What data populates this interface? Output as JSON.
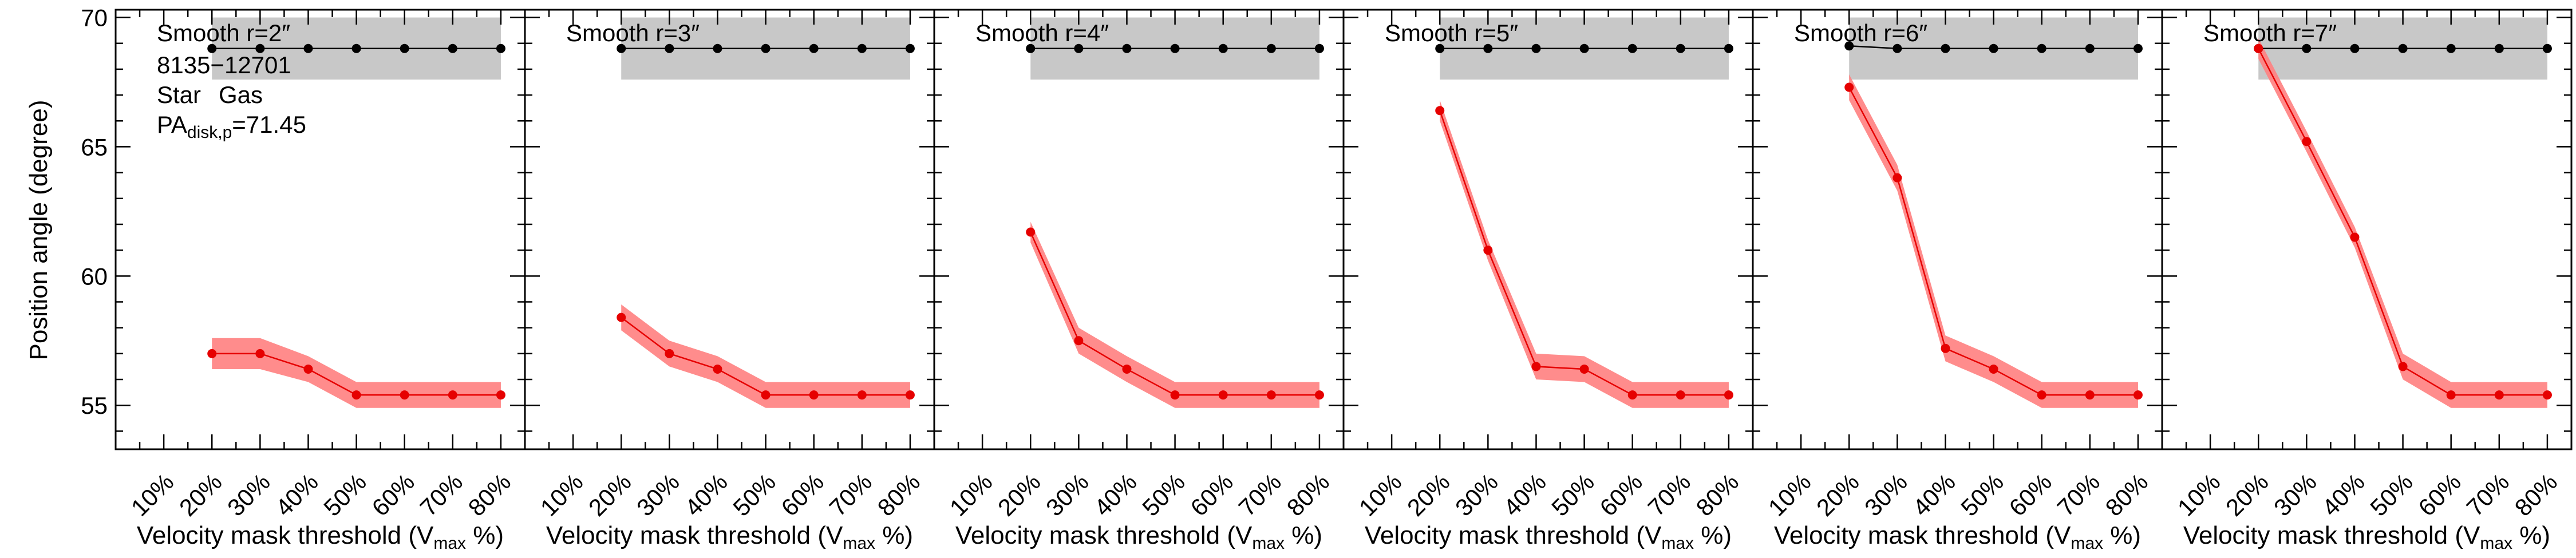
{
  "chart_data": {
    "type": "line",
    "ylabel": "Position angle (degree)",
    "xlabel_main": "Velocity mask threshold (V",
    "xlabel_sub": "max",
    "xlabel_end": " %)",
    "x_ticks": [
      "10%",
      "20%",
      "30%",
      "40%",
      "50%",
      "60%",
      "70%",
      "80%"
    ],
    "x_tick_values": [
      10,
      20,
      30,
      40,
      50,
      60,
      70,
      80
    ],
    "xlim": [
      0,
      85
    ],
    "y_ticks": [
      55,
      60,
      65,
      70
    ],
    "ylim": [
      53.3,
      70.3
    ],
    "grid": false,
    "legend": {
      "id_label": "8135−12701",
      "star_label": "Star",
      "gas_label": "Gas",
      "pa_prefix": "PA",
      "pa_sub": "disk,p",
      "pa_value": "=71.45"
    },
    "colors": {
      "star": "#000000",
      "gas": "#e60000",
      "gas_band": "#ff8080",
      "star_band": "#c8c8c8"
    },
    "panels": [
      {
        "title": "Smooth r=2″",
        "star": {
          "x": [
            20,
            30,
            40,
            50,
            60,
            70,
            80
          ],
          "y": [
            68.8,
            68.8,
            68.8,
            68.8,
            68.8,
            68.8,
            68.8
          ],
          "band": [
            67.6,
            70.0
          ]
        },
        "gas": {
          "x": [
            20,
            30,
            40,
            50,
            60,
            70,
            80
          ],
          "y": [
            57.0,
            57.0,
            56.4,
            55.4,
            55.4,
            55.4,
            55.4
          ],
          "err": [
            0.6,
            0.6,
            0.5,
            0.5,
            0.5,
            0.5,
            0.5
          ]
        }
      },
      {
        "title": "Smooth r=3″",
        "star": {
          "x": [
            20,
            30,
            40,
            50,
            60,
            70,
            80
          ],
          "y": [
            68.8,
            68.8,
            68.8,
            68.8,
            68.8,
            68.8,
            68.8
          ],
          "band": [
            67.6,
            70.0
          ]
        },
        "gas": {
          "x": [
            20,
            30,
            40,
            50,
            60,
            70,
            80
          ],
          "y": [
            58.4,
            57.0,
            56.4,
            55.4,
            55.4,
            55.4,
            55.4
          ],
          "err": [
            0.5,
            0.5,
            0.5,
            0.5,
            0.5,
            0.5,
            0.5
          ]
        }
      },
      {
        "title": "Smooth r=4″",
        "star": {
          "x": [
            20,
            30,
            40,
            50,
            60,
            70,
            80
          ],
          "y": [
            68.8,
            68.8,
            68.8,
            68.8,
            68.8,
            68.8,
            68.8
          ],
          "band": [
            67.6,
            70.0
          ]
        },
        "gas": {
          "x": [
            20,
            30,
            40,
            50,
            60,
            70,
            80
          ],
          "y": [
            61.7,
            57.5,
            56.4,
            55.4,
            55.4,
            55.4,
            55.4
          ],
          "err": [
            0.4,
            0.5,
            0.5,
            0.5,
            0.5,
            0.5,
            0.5
          ]
        }
      },
      {
        "title": "Smooth r=5″",
        "star": {
          "x": [
            20,
            30,
            40,
            50,
            60,
            70,
            80
          ],
          "y": [
            68.8,
            68.8,
            68.8,
            68.8,
            68.8,
            68.8,
            68.8
          ],
          "band": [
            67.6,
            70.0
          ]
        },
        "gas": {
          "x": [
            20,
            30,
            40,
            50,
            60,
            70,
            80
          ],
          "y": [
            66.4,
            61.0,
            56.5,
            56.4,
            55.4,
            55.4,
            55.4
          ],
          "err": [
            0.4,
            0.4,
            0.5,
            0.5,
            0.5,
            0.5,
            0.5
          ]
        }
      },
      {
        "title": "Smooth r=6″",
        "star": {
          "x": [
            20,
            30,
            40,
            50,
            60,
            70,
            80
          ],
          "y": [
            68.9,
            68.8,
            68.8,
            68.8,
            68.8,
            68.8,
            68.8
          ],
          "band": [
            67.6,
            70.0
          ]
        },
        "gas": {
          "x": [
            20,
            30,
            40,
            50,
            60,
            70,
            80
          ],
          "y": [
            67.3,
            63.8,
            57.2,
            56.4,
            55.4,
            55.4,
            55.4
          ],
          "err": [
            0.5,
            0.5,
            0.5,
            0.5,
            0.5,
            0.5,
            0.5
          ]
        }
      },
      {
        "title": "Smooth r=7″",
        "star": {
          "x": [
            20,
            30,
            40,
            50,
            60,
            70,
            80
          ],
          "y": [
            68.8,
            68.8,
            68.8,
            68.8,
            68.8,
            68.8,
            68.8
          ],
          "band": [
            67.6,
            70.0
          ]
        },
        "gas": {
          "x": [
            20,
            30,
            40,
            50,
            60,
            70,
            80
          ],
          "y": [
            68.8,
            65.2,
            61.5,
            56.5,
            55.4,
            55.4,
            55.4
          ],
          "err": [
            0.4,
            0.4,
            0.4,
            0.5,
            0.5,
            0.5,
            0.5
          ]
        }
      }
    ]
  }
}
